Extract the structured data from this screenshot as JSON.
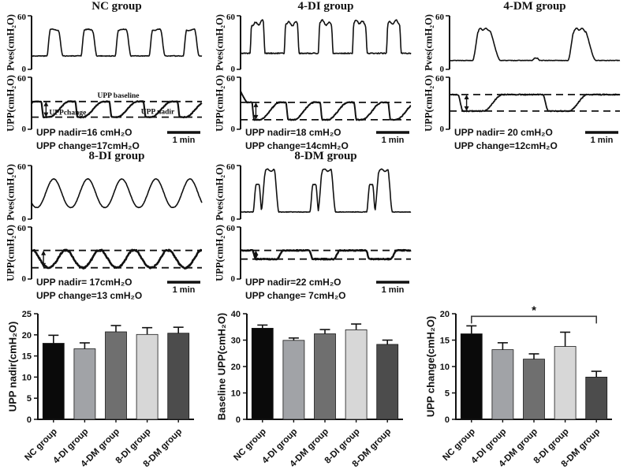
{
  "chart_data": {
    "traces": [
      {
        "title": "NC group",
        "pves": {
          "ylabel": "Pves(cmH₂O)",
          "yticks": [
            0,
            60
          ],
          "type": "rounded",
          "base": 15,
          "peak": 45,
          "cycles": 5,
          "phase": 0.85,
          "noise": 0.7,
          "seed": 3
        },
        "upp": {
          "ylabel": "UPP(cmH₂O)",
          "yticks": [
            0,
            60
          ],
          "base": 32,
          "nadir": 14,
          "dips": 5,
          "phase": 0.75,
          "style": "sharp",
          "noise": 0.9,
          "thick": 2.2,
          "arrow_u": 0.085,
          "seed": 7,
          "baseline_label": "UPP baseline",
          "change_label": "UPPchange",
          "nadir_label": "UPP nadir"
        },
        "scale_label": "1 min",
        "nadir_text": "UPP nadir=16 cmH₂O",
        "change_text": "UPP change=17cmH₂O"
      },
      {
        "title": "4-DI group",
        "pves": {
          "ylabel": "Pves(cmH₂O)",
          "yticks": [
            0,
            60
          ],
          "type": "square",
          "base": 18,
          "peak": 52,
          "cycles": 5,
          "phase": 0.92,
          "noise": 1.1,
          "seed": 5
        },
        "upp": {
          "ylabel": "UPP(cmH₂O)",
          "yticks": [
            0,
            60
          ],
          "base": 31,
          "nadir": 11,
          "dips": 5,
          "phase": 0.7,
          "style": "sharp",
          "noise": 1.1,
          "thick": 2.0,
          "arrow_u": 0.09,
          "start_spike": 44,
          "seed": 9
        },
        "scale_label": "1 min",
        "nadir_text": "UPP nadir=18 cmH₂O",
        "change_text": "UPP change=14cmH₂O"
      },
      {
        "title": "4-DM group",
        "pves": {
          "ylabel": "Pves(cmH₂O)",
          "yticks": [
            0,
            60
          ],
          "type": "sparse",
          "base": 10,
          "peak": 46,
          "cycles": 1,
          "phase": 0,
          "noise": 0.5,
          "seed": 13
        },
        "upp": {
          "ylabel": "UPP(cmH₂O)",
          "yticks": [
            0,
            60
          ],
          "base": 40,
          "nadir": 21,
          "dips": 2,
          "phase": 0.94,
          "style": "dm4",
          "noise": 1.1,
          "thick": 1.8,
          "arrow_u": 0.1,
          "seed": 15
        },
        "scale_label": "1 min",
        "nadir_text": "UPP nadir= 20 cmH₂O",
        "change_text": "UPP change=12cmH₂O"
      },
      {
        "title": "8-DI group",
        "pves": {
          "ylabel": "Pves(cmH₂O)",
          "yticks": [
            0,
            60
          ],
          "type": "sine",
          "base": 13,
          "peak": 45,
          "cycles": 5,
          "phase": 0.85,
          "noise": 0.5,
          "seed": 17
        },
        "upp": {
          "ylabel": "UPP(cmH₂O)",
          "yticks": [
            0,
            60
          ],
          "base": 33,
          "nadir": 13,
          "dips": 5,
          "phase": 0.98,
          "style": "u",
          "noise": 1.6,
          "thick": 2.6,
          "arrow_u": 0.07,
          "seed": 21
        },
        "scale_label": "1 min",
        "nadir_text": "UPP nadir= 17cmH₂O",
        "change_text": "UPP change=13 cmH₂O"
      },
      {
        "title": "8-DM group",
        "pves": {
          "ylabel": "Pves(cmH₂O)",
          "yticks": [
            0,
            60
          ],
          "type": "double",
          "base": 8,
          "peak": 56,
          "cycles": 3,
          "phase": 0.94,
          "noise": 0.6,
          "seed": 23
        },
        "upp": {
          "ylabel": "UPP(cmH₂O)",
          "yticks": [
            0,
            60
          ],
          "base": 33,
          "nadir": 23,
          "dips": 3,
          "phase": 0.83,
          "style": "dm8",
          "noise": 1.1,
          "thick": 2.4,
          "arrow_u": 0.09,
          "seed": 25
        },
        "scale_label": "1 min",
        "nadir_text": "UPP nadir=22 cmH₂O",
        "change_text": "UPP change= 7cmH₂O"
      }
    ],
    "bars": [
      {
        "type": "bar",
        "ylabel": "UPP nadir(cmH₂O)",
        "ylim": [
          0,
          25
        ],
        "yticks": [
          0,
          5,
          10,
          15,
          20,
          25
        ],
        "categories": [
          "NC group",
          "4-DI group",
          "4-DM group",
          "8-DI group",
          "8-DM group"
        ],
        "values": [
          18.0,
          16.7,
          20.7,
          20.1,
          20.4
        ],
        "errors": [
          1.9,
          1.4,
          1.5,
          1.6,
          1.4
        ],
        "colors": [
          "#0a0a0a",
          "#a1a3a7",
          "#6f6f6f",
          "#d7d7d7",
          "#4c4c4c"
        ]
      },
      {
        "type": "bar",
        "ylabel": "Baseline UPP(cmH₂O)",
        "ylim": [
          0,
          40
        ],
        "yticks": [
          0,
          10,
          20,
          30,
          40
        ],
        "categories": [
          "NC group",
          "4-DI group",
          "4-DM group",
          "8-DI group",
          "8-DM group"
        ],
        "values": [
          34.5,
          29.9,
          32.4,
          33.9,
          28.4
        ],
        "errors": [
          1.2,
          0.9,
          1.6,
          2.2,
          1.6
        ],
        "colors": [
          "#0a0a0a",
          "#a1a3a7",
          "#6f6f6f",
          "#d7d7d7",
          "#4c4c4c"
        ]
      },
      {
        "type": "bar",
        "ylabel": "UPP change(cmH₂O)",
        "ylim": [
          0,
          20
        ],
        "yticks": [
          0,
          5,
          10,
          15,
          20
        ],
        "categories": [
          "NC group",
          "4-DI group",
          "4-DM group",
          "8-DI group",
          "8-DM group"
        ],
        "values": [
          16.2,
          13.2,
          11.4,
          13.8,
          8.0
        ],
        "errors": [
          1.5,
          1.3,
          1.0,
          2.7,
          1.1
        ],
        "colors": [
          "#0a0a0a",
          "#a1a3a7",
          "#6f6f6f",
          "#d7d7d7",
          "#4c4c4c"
        ],
        "sig": {
          "from": 0,
          "to": 4,
          "label": "*",
          "y": 19.5
        }
      }
    ]
  }
}
